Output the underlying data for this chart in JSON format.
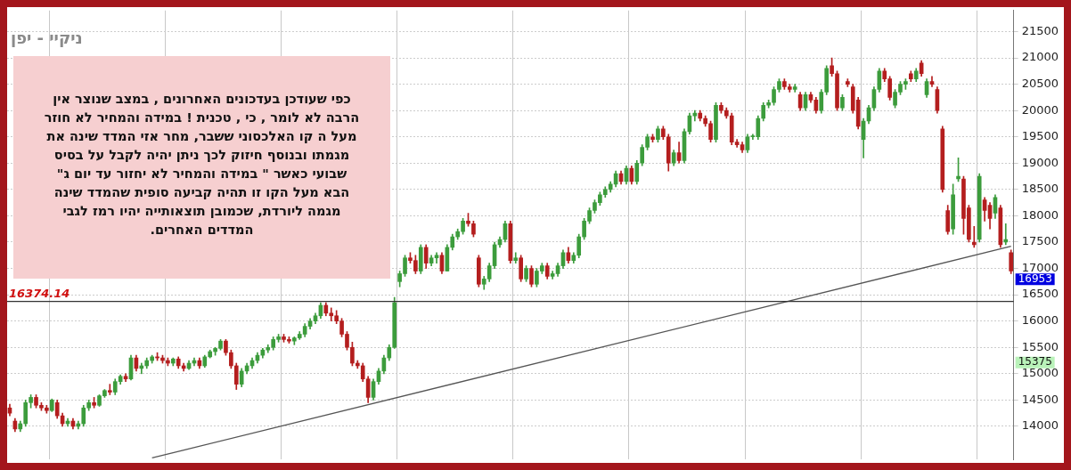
{
  "chart_data": {
    "type": "candlestick",
    "title": "ניקיי - יפן",
    "categories": [
      null,
      null,
      null,
      null,
      null,
      null,
      null,
      null,
      null,
      null,
      null,
      null,
      null,
      null,
      null,
      null,
      null,
      null,
      null,
      null,
      null,
      null,
      null,
      null,
      null,
      null,
      null,
      null,
      null,
      null,
      null,
      null,
      null,
      null,
      null,
      null,
      null,
      null,
      null,
      null,
      null,
      null,
      null,
      null,
      null,
      null,
      null,
      null,
      null,
      null,
      null,
      null,
      null,
      null,
      null,
      null,
      null,
      null,
      null,
      null,
      null,
      null,
      null,
      null,
      null,
      null,
      null,
      null,
      null,
      null,
      null,
      null,
      null,
      null,
      null,
      null,
      null,
      null,
      null,
      null,
      null,
      null,
      null,
      null,
      null,
      null,
      null,
      null,
      null,
      null,
      null,
      null,
      null,
      null,
      null,
      null,
      null,
      null,
      null,
      null,
      null,
      null,
      null,
      null,
      null,
      null,
      null,
      null,
      null,
      null,
      null,
      null,
      null,
      null,
      null,
      null,
      null,
      null,
      null,
      null,
      null,
      null,
      null,
      null,
      null,
      null,
      null,
      null,
      null,
      null,
      null,
      null,
      null,
      null,
      null,
      null,
      null,
      null,
      null,
      null,
      null,
      null,
      null,
      null,
      null,
      null,
      null,
      null,
      null,
      null,
      null,
      null,
      null,
      null,
      null,
      null,
      null,
      null,
      null,
      null,
      null,
      null,
      null,
      null,
      null,
      null,
      null,
      null,
      null,
      null,
      null,
      null,
      null,
      null,
      null,
      null,
      null,
      null,
      null,
      null,
      null,
      null,
      null,
      null,
      null,
      null,
      null,
      null,
      null,
      null,
      null
    ],
    "ohlc": [
      [
        14350,
        14420,
        14200,
        14250
      ],
      [
        14100,
        14150,
        13900,
        13950
      ],
      [
        13950,
        14100,
        13900,
        14050
      ],
      [
        14050,
        14500,
        14000,
        14450
      ],
      [
        14450,
        14600,
        14350,
        14550
      ],
      [
        14550,
        14600,
        14350,
        14400
      ],
      [
        14400,
        14450,
        14300,
        14350
      ],
      [
        14350,
        14400,
        14250,
        14300
      ],
      [
        14300,
        14520,
        14280,
        14500
      ],
      [
        14450,
        14500,
        14150,
        14200
      ],
      [
        14200,
        14250,
        14000,
        14050
      ],
      [
        14050,
        14150,
        14000,
        14100
      ],
      [
        14100,
        14150,
        13950,
        14000
      ],
      [
        14000,
        14100,
        13950,
        14050
      ],
      [
        14050,
        14400,
        14000,
        14350
      ],
      [
        14350,
        14500,
        14300,
        14450
      ],
      [
        14450,
        14550,
        14350,
        14400
      ],
      [
        14400,
        14600,
        14380,
        14580
      ],
      [
        14580,
        14700,
        14550,
        14680
      ],
      [
        14680,
        14800,
        14600,
        14650
      ],
      [
        14650,
        14900,
        14600,
        14850
      ],
      [
        14850,
        14980,
        14800,
        14950
      ],
      [
        14950,
        15000,
        14850,
        14900
      ],
      [
        14900,
        15350,
        14880,
        15300
      ],
      [
        15300,
        15350,
        15050,
        15100
      ],
      [
        15100,
        15200,
        15000,
        15150
      ],
      [
        15150,
        15300,
        15100,
        15250
      ],
      [
        15250,
        15350,
        15200,
        15320
      ],
      [
        15320,
        15400,
        15250,
        15300
      ],
      [
        15300,
        15350,
        15200,
        15250
      ],
      [
        15250,
        15300,
        15150,
        15200
      ],
      [
        15200,
        15300,
        15150,
        15280
      ],
      [
        15280,
        15320,
        15100,
        15150
      ],
      [
        15150,
        15200,
        15050,
        15100
      ],
      [
        15100,
        15250,
        15080,
        15200
      ],
      [
        15200,
        15300,
        15150,
        15250
      ],
      [
        15250,
        15300,
        15100,
        15150
      ],
      [
        15150,
        15350,
        15120,
        15320
      ],
      [
        15320,
        15450,
        15300,
        15420
      ],
      [
        15420,
        15500,
        15350,
        15480
      ],
      [
        15480,
        15650,
        15450,
        15620
      ],
      [
        15620,
        15650,
        15350,
        15400
      ],
      [
        15400,
        15450,
        15100,
        15150
      ],
      [
        15150,
        15200,
        14700,
        14800
      ],
      [
        14800,
        15100,
        14750,
        15050
      ],
      [
        15050,
        15200,
        15000,
        15150
      ],
      [
        15150,
        15300,
        15100,
        15250
      ],
      [
        15250,
        15400,
        15200,
        15350
      ],
      [
        15350,
        15480,
        15300,
        15450
      ],
      [
        15450,
        15550,
        15400,
        15500
      ],
      [
        15500,
        15700,
        15450,
        15650
      ],
      [
        15650,
        15750,
        15600,
        15700
      ],
      [
        15700,
        15750,
        15600,
        15650
      ],
      [
        15650,
        15700,
        15580,
        15620
      ],
      [
        15620,
        15700,
        15550,
        15680
      ],
      [
        15680,
        15800,
        15650,
        15750
      ],
      [
        15750,
        15950,
        15700,
        15900
      ],
      [
        15900,
        16050,
        15850,
        16000
      ],
      [
        16000,
        16150,
        15950,
        16100
      ],
      [
        16100,
        16350,
        16050,
        16300
      ],
      [
        16300,
        16350,
        16100,
        16150
      ],
      [
        16150,
        16250,
        16000,
        16100
      ],
      [
        16100,
        16200,
        15950,
        16000
      ],
      [
        16000,
        16050,
        15700,
        15750
      ],
      [
        15750,
        15800,
        15450,
        15500
      ],
      [
        15500,
        15600,
        15150,
        15200
      ],
      [
        15200,
        15250,
        15100,
        15150
      ],
      [
        15150,
        15200,
        14850,
        14900
      ],
      [
        14900,
        14950,
        14450,
        14550
      ],
      [
        14550,
        14900,
        14500,
        14850
      ],
      [
        14850,
        15100,
        14800,
        15050
      ],
      [
        15050,
        15350,
        15000,
        15300
      ],
      [
        15300,
        15550,
        15250,
        15500
      ],
      [
        15500,
        16450,
        15480,
        16350
      ],
      [
        16750,
        16950,
        16650,
        16900
      ],
      [
        16900,
        17250,
        16850,
        17200
      ],
      [
        17200,
        17300,
        17100,
        17150
      ],
      [
        17150,
        17250,
        16900,
        16950
      ],
      [
        16950,
        17450,
        16900,
        17400
      ],
      [
        17400,
        17450,
        17000,
        17100
      ],
      [
        17100,
        17250,
        17050,
        17200
      ],
      [
        17200,
        17300,
        17100,
        17250
      ],
      [
        17250,
        17300,
        16900,
        16950
      ],
      [
        16950,
        17450,
        16950,
        17400
      ],
      [
        17400,
        17650,
        17350,
        17600
      ],
      [
        17600,
        17750,
        17550,
        17700
      ],
      [
        17700,
        17950,
        17650,
        17900
      ],
      [
        17900,
        18050,
        17800,
        17850
      ],
      [
        17850,
        17900,
        17600,
        17650
      ],
      [
        17200,
        17250,
        16650,
        16700
      ],
      [
        16700,
        16850,
        16600,
        16800
      ],
      [
        16800,
        17100,
        16750,
        17050
      ],
      [
        17050,
        17500,
        17000,
        17450
      ],
      [
        17450,
        17600,
        17400,
        17550
      ],
      [
        17550,
        17900,
        17500,
        17850
      ],
      [
        17850,
        17900,
        17100,
        17150
      ],
      [
        17150,
        17300,
        17100,
        17200
      ],
      [
        17200,
        17250,
        16750,
        16800
      ],
      [
        16800,
        17050,
        16750,
        17000
      ],
      [
        17000,
        17050,
        16650,
        16700
      ],
      [
        16700,
        17000,
        16650,
        16950
      ],
      [
        16950,
        17100,
        16900,
        17050
      ],
      [
        17050,
        17100,
        16800,
        16850
      ],
      [
        16850,
        16950,
        16800,
        16900
      ],
      [
        16900,
        17100,
        16850,
        17050
      ],
      [
        17050,
        17350,
        17000,
        17300
      ],
      [
        17300,
        17400,
        17100,
        17150
      ],
      [
        17150,
        17300,
        17100,
        17250
      ],
      [
        17250,
        17650,
        17200,
        17600
      ],
      [
        17600,
        17950,
        17550,
        17900
      ],
      [
        17900,
        18150,
        17850,
        18100
      ],
      [
        18100,
        18300,
        18050,
        18250
      ],
      [
        18250,
        18450,
        18200,
        18400
      ],
      [
        18400,
        18550,
        18350,
        18500
      ],
      [
        18500,
        18650,
        18450,
        18600
      ],
      [
        18600,
        18850,
        18550,
        18800
      ],
      [
        18800,
        18850,
        18600,
        18650
      ],
      [
        18650,
        18950,
        18600,
        18900
      ],
      [
        18900,
        18950,
        18600,
        18650
      ],
      [
        18650,
        19050,
        18600,
        19000
      ],
      [
        19000,
        19350,
        18950,
        19300
      ],
      [
        19300,
        19550,
        19250,
        19500
      ],
      [
        19500,
        19550,
        19400,
        19450
      ],
      [
        19450,
        19700,
        19400,
        19650
      ],
      [
        19650,
        19700,
        19450,
        19500
      ],
      [
        19500,
        19550,
        18850,
        19000
      ],
      [
        19000,
        19250,
        18950,
        19200
      ],
      [
        19200,
        19400,
        19000,
        19050
      ],
      [
        19050,
        19650,
        19000,
        19600
      ],
      [
        19600,
        19950,
        19550,
        19900
      ],
      [
        19900,
        20000,
        19800,
        19950
      ],
      [
        19950,
        20000,
        19800,
        19850
      ],
      [
        19850,
        19900,
        19700,
        19750
      ],
      [
        19750,
        19800,
        19400,
        19450
      ],
      [
        19450,
        20150,
        19400,
        20100
      ],
      [
        20100,
        20150,
        19950,
        20000
      ],
      [
        20000,
        20050,
        19850,
        19900
      ],
      [
        19900,
        19950,
        19350,
        19400
      ],
      [
        19400,
        19450,
        19300,
        19350
      ],
      [
        19350,
        19400,
        19200,
        19250
      ],
      [
        19250,
        19550,
        19200,
        19500
      ],
      [
        19500,
        19550,
        19450,
        19520
      ],
      [
        19500,
        19900,
        19450,
        19850
      ],
      [
        19850,
        20150,
        19800,
        20100
      ],
      [
        20100,
        20200,
        20050,
        20150
      ],
      [
        20150,
        20450,
        20100,
        20400
      ],
      [
        20400,
        20600,
        20350,
        20550
      ],
      [
        20550,
        20600,
        20400,
        20450
      ],
      [
        20450,
        20500,
        20350,
        20400
      ],
      [
        20400,
        20500,
        20350,
        20450
      ],
      [
        20300,
        20350,
        20000,
        20050
      ],
      [
        20050,
        20350,
        20000,
        20300
      ],
      [
        20300,
        20350,
        20150,
        20200
      ],
      [
        20200,
        20250,
        19950,
        20000
      ],
      [
        20000,
        20400,
        19950,
        20350
      ],
      [
        20350,
        20850,
        20300,
        20800
      ],
      [
        20850,
        21000,
        20650,
        20700
      ],
      [
        20700,
        20750,
        20000,
        20050
      ],
      [
        20050,
        20300,
        20000,
        20250
      ],
      [
        20550,
        20600,
        20450,
        20500
      ],
      [
        20450,
        20500,
        19950,
        20000
      ],
      [
        20200,
        20250,
        19650,
        19700
      ],
      [
        19450,
        19850,
        19100,
        19800
      ],
      [
        19800,
        20100,
        19750,
        20050
      ],
      [
        20050,
        20450,
        20000,
        20400
      ],
      [
        20400,
        20800,
        20350,
        20750
      ],
      [
        20750,
        20800,
        20550,
        20600
      ],
      [
        20600,
        20650,
        20200,
        20250
      ],
      [
        20100,
        20400,
        20050,
        20350
      ],
      [
        20350,
        20550,
        20300,
        20500
      ],
      [
        20500,
        20600,
        20400,
        20550
      ],
      [
        20700,
        20750,
        20550,
        20600
      ],
      [
        20600,
        20800,
        20550,
        20750
      ],
      [
        20900,
        20950,
        20650,
        20700
      ],
      [
        20300,
        20600,
        20250,
        20550
      ],
      [
        20550,
        20650,
        20450,
        20500
      ],
      [
        20400,
        20450,
        19950,
        20000
      ],
      [
        19650,
        19700,
        18450,
        18500
      ],
      [
        18100,
        18200,
        17650,
        17700
      ],
      [
        17750,
        18600,
        17650,
        18400
      ],
      [
        18700,
        19100,
        18650,
        18750
      ],
      [
        18700,
        18750,
        17650,
        17950
      ],
      [
        18150,
        18200,
        17500,
        17550
      ],
      [
        17500,
        17800,
        17400,
        17450
      ],
      [
        17550,
        18800,
        17500,
        18750
      ],
      [
        18300,
        18350,
        17900,
        18100
      ],
      [
        18200,
        18250,
        17750,
        17950
      ],
      [
        18050,
        18400,
        17950,
        18350
      ],
      [
        18150,
        18200,
        17400,
        17450
      ],
      [
        17500,
        17850,
        17450,
        17550
      ],
      [
        17300,
        17350,
        16900,
        16953
      ]
    ],
    "colors": [
      "#b41e1e",
      "#b41e1e",
      "#3c9c3c",
      "#3c9c3c",
      "#3c9c3c",
      "#b41e1e",
      "#b41e1e",
      "#b41e1e",
      "#3c9c3c",
      "#b41e1e",
      "#b41e1e",
      "#3c9c3c",
      "#b41e1e",
      "#3c9c3c",
      "#3c9c3c",
      "#3c9c3c",
      "#b41e1e",
      "#3c9c3c",
      "#3c9c3c",
      "#b41e1e",
      "#3c9c3c",
      "#3c9c3c",
      "#b41e1e",
      "#3c9c3c",
      "#b41e1e",
      "#3c9c3c",
      "#3c9c3c",
      "#3c9c3c",
      "#b41e1e",
      "#b41e1e",
      "#b41e1e",
      "#3c9c3c",
      "#b41e1e",
      "#b41e1e",
      "#3c9c3c",
      "#3c9c3c",
      "#b41e1e",
      "#3c9c3c",
      "#3c9c3c",
      "#3c9c3c",
      "#3c9c3c",
      "#b41e1e",
      "#b41e1e",
      "#b41e1e",
      "#3c9c3c",
      "#3c9c3c",
      "#3c9c3c",
      "#3c9c3c",
      "#3c9c3c",
      "#3c9c3c",
      "#3c9c3c",
      "#3c9c3c",
      "#b41e1e",
      "#b41e1e",
      "#3c9c3c",
      "#3c9c3c",
      "#3c9c3c",
      "#3c9c3c",
      "#3c9c3c",
      "#3c9c3c",
      "#b41e1e",
      "#b41e1e",
      "#b41e1e",
      "#b41e1e",
      "#b41e1e",
      "#b41e1e",
      "#b41e1e",
      "#b41e1e",
      "#b41e1e",
      "#3c9c3c",
      "#3c9c3c",
      "#3c9c3c",
      "#3c9c3c",
      "#3c9c3c",
      "#3c9c3c",
      "#3c9c3c",
      "#b41e1e",
      "#b41e1e",
      "#3c9c3c",
      "#b41e1e",
      "#3c9c3c",
      "#3c9c3c",
      "#b41e1e",
      "#3c9c3c",
      "#3c9c3c",
      "#3c9c3c",
      "#3c9c3c",
      "#b41e1e",
      "#b41e1e",
      "#b41e1e",
      "#3c9c3c",
      "#3c9c3c",
      "#3c9c3c",
      "#3c9c3c",
      "#3c9c3c",
      "#b41e1e",
      "#3c9c3c",
      "#b41e1e",
      "#3c9c3c",
      "#b41e1e",
      "#3c9c3c",
      "#3c9c3c",
      "#b41e1e",
      "#3c9c3c",
      "#3c9c3c",
      "#3c9c3c",
      "#b41e1e",
      "#3c9c3c",
      "#3c9c3c",
      "#3c9c3c",
      "#3c9c3c",
      "#3c9c3c",
      "#3c9c3c",
      "#3c9c3c",
      "#3c9c3c",
      "#3c9c3c",
      "#b41e1e",
      "#3c9c3c",
      "#b41e1e",
      "#3c9c3c",
      "#3c9c3c",
      "#3c9c3c",
      "#b41e1e",
      "#3c9c3c",
      "#b41e1e",
      "#b41e1e",
      "#3c9c3c",
      "#b41e1e",
      "#3c9c3c",
      "#3c9c3c",
      "#3c9c3c",
      "#b41e1e",
      "#b41e1e",
      "#b41e1e",
      "#3c9c3c",
      "#b41e1e",
      "#b41e1e",
      "#b41e1e",
      "#b41e1e",
      "#b41e1e",
      "#3c9c3c",
      "#3c9c3c",
      "#3c9c3c",
      "#3c9c3c",
      "#3c9c3c",
      "#3c9c3c",
      "#3c9c3c",
      "#b41e1e",
      "#b41e1e",
      "#3c9c3c",
      "#b41e1e",
      "#3c9c3c",
      "#b41e1e",
      "#b41e1e",
      "#3c9c3c",
      "#3c9c3c",
      "#b41e1e",
      "#b41e1e",
      "#3c9c3c",
      "#b41e1e",
      "#b41e1e",
      "#b41e1e",
      "#3c9c3c",
      "#3c9c3c",
      "#3c9c3c",
      "#3c9c3c",
      "#b41e1e",
      "#b41e1e",
      "#3c9c3c",
      "#3c9c3c",
      "#3c9c3c",
      "#b41e1e",
      "#3c9c3c",
      "#b41e1e",
      "#3c9c3c",
      "#b41e1e",
      "#b41e1e",
      "#b41e1e",
      "#b41e1e",
      "#3c9c3c",
      "#3c9c3c",
      "#b41e1e",
      "#b41e1e",
      "#b41e1e",
      "#3c9c3c",
      "#b41e1e",
      "#b41e1e",
      "#3c9c3c",
      "#b41e1e",
      "#3c9c3c",
      "#b41e1e"
    ],
    "series": [
      {
        "type": "line",
        "color": "#555555",
        "values": [
          null,
          null,
          null,
          null,
          null,
          null,
          null,
          null,
          null,
          null,
          null,
          null,
          null,
          null,
          null,
          null,
          null,
          null,
          null,
          null,
          null,
          null,
          null,
          null,
          null,
          null,
          null,
          13400,
          null,
          null,
          null,
          null,
          null,
          null,
          null,
          null,
          null,
          null,
          null,
          null,
          null,
          null,
          null,
          null,
          null,
          null,
          null,
          null,
          null,
          null,
          null,
          null,
          null,
          null,
          null,
          null,
          null,
          null,
          null,
          null,
          null,
          null,
          null,
          null,
          null,
          null,
          null,
          null,
          null,
          null,
          null,
          null,
          null,
          null,
          null,
          null,
          null,
          null,
          null,
          null,
          null,
          null,
          null,
          null,
          null,
          null,
          null,
          null,
          null,
          null,
          null,
          null,
          null,
          null,
          null,
          null,
          null,
          null,
          null,
          null,
          null,
          null,
          null,
          null,
          null,
          null,
          null,
          null,
          null,
          null,
          null,
          null,
          null,
          null,
          null,
          null,
          null,
          null,
          null,
          null,
          null,
          null,
          null,
          null,
          null,
          null,
          null,
          null,
          null,
          null,
          null,
          null,
          null,
          null,
          null,
          null,
          null,
          null,
          null,
          null,
          null,
          null,
          null,
          null,
          null,
          null,
          null,
          null,
          null,
          null,
          null,
          null,
          null,
          null,
          null,
          null,
          null,
          null,
          null,
          null,
          null,
          null,
          null,
          null,
          null,
          null,
          null,
          null,
          null,
          null,
          null,
          null,
          null,
          null,
          null,
          null,
          null,
          null,
          null,
          null,
          null,
          null,
          null,
          null,
          null,
          null,
          null,
          null,
          null,
          null,
          17420
        ]
      }
    ],
    "ylim": [
      13370,
      21900
    ],
    "yticks": [
      14000,
      14500,
      15000,
      15500,
      16000,
      16500,
      17000,
      17500,
      18000,
      18500,
      19000,
      19500,
      20000,
      20500,
      21000,
      21500
    ],
    "tick_labels": "y",
    "grid": true,
    "ref_lines": [
      {
        "axis": "y",
        "value": 16374.14,
        "label": "16374.14",
        "color": "#333333"
      }
    ],
    "annotations": [
      "כפי שעודכן בעדכונים האחרונים , במצב שנוצר אין\nהרבה לא לומר , כי , טכנית ! במידה והמחיר לא חוזר\nמעל ה קו האלכסוני ששבר, מחר אזי המדד שינה את\nמגמתו ובנוסף חיזוק לכך ניתן יהיה לקבל על בסיס\nשבועי כאשר \" במידה והמחיר לא יחזור עד יום ג\"\nהבא מעל הקו זו תהיה קביעה סופית שהמדד שינה\nמגמה ליורדת, שכמובן תוצאותייה יהיו רמז לגבי\nהמדדים האחרים.",
      "16953",
      "15375"
    ]
  }
}
